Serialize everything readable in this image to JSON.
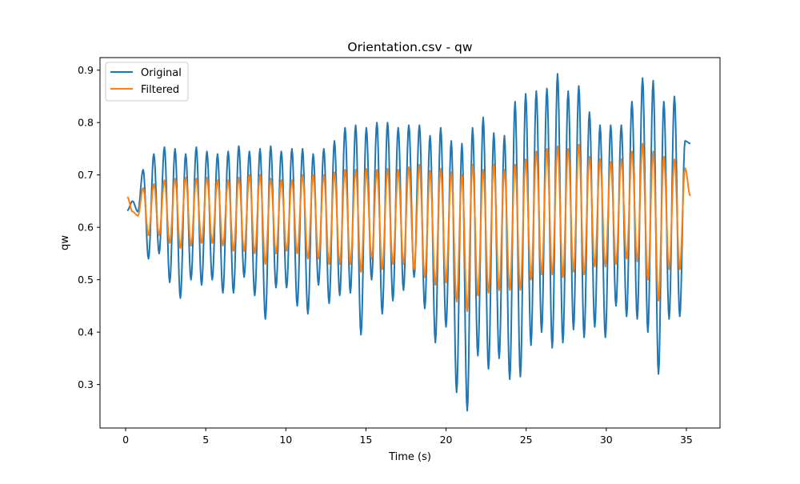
{
  "chart_data": {
    "type": "line",
    "title": "Orientation.csv - qw",
    "xlabel": "Time (s)",
    "ylabel": "qw",
    "xlim": [
      -1.6,
      37.1
    ],
    "ylim": [
      0.217,
      0.924
    ],
    "xticks": [
      0,
      5,
      10,
      15,
      20,
      25,
      30,
      35
    ],
    "yticks": [
      0.3,
      0.4,
      0.5,
      0.6,
      0.7,
      0.8,
      0.9
    ],
    "xtick_labels": [
      "0",
      "5",
      "10",
      "15",
      "20",
      "25",
      "30",
      "35"
    ],
    "ytick_labels": [
      "0.3",
      "0.4",
      "0.5",
      "0.6",
      "0.7",
      "0.8",
      "0.9"
    ],
    "grid": false,
    "legend_position": "upper-left",
    "colors": {
      "Original": "#1f77b4",
      "Filtered": "#ff7f0e"
    },
    "x_start": 0.1,
    "x_end": 35.25,
    "series": [
      {
        "name": "Original",
        "start_value": 0.632,
        "end_value": 0.76,
        "peaks": [
          0.65,
          0.71,
          0.74,
          0.753,
          0.75,
          0.74,
          0.753,
          0.745,
          0.74,
          0.745,
          0.755,
          0.745,
          0.75,
          0.755,
          0.745,
          0.75,
          0.75,
          0.74,
          0.75,
          0.765,
          0.79,
          0.795,
          0.79,
          0.8,
          0.8,
          0.79,
          0.795,
          0.795,
          0.775,
          0.79,
          0.765,
          0.76,
          0.79,
          0.81,
          0.78,
          0.775,
          0.84,
          0.855,
          0.86,
          0.865,
          0.893,
          0.86,
          0.87,
          0.82,
          0.795,
          0.795,
          0.795,
          0.84,
          0.885,
          0.88,
          0.84,
          0.85,
          0.765
        ],
        "troughs": [
          0.63,
          0.54,
          0.55,
          0.495,
          0.465,
          0.5,
          0.49,
          0.5,
          0.475,
          0.475,
          0.505,
          0.47,
          0.425,
          0.485,
          0.485,
          0.45,
          0.435,
          0.49,
          0.455,
          0.47,
          0.475,
          0.395,
          0.5,
          0.435,
          0.46,
          0.48,
          0.505,
          0.445,
          0.38,
          0.41,
          0.285,
          0.25,
          0.355,
          0.33,
          0.35,
          0.31,
          0.315,
          0.375,
          0.4,
          0.37,
          0.38,
          0.405,
          0.39,
          0.41,
          0.39,
          0.45,
          0.43,
          0.425,
          0.4,
          0.32,
          0.425,
          0.43
        ]
      },
      {
        "name": "Filtered",
        "start_value": 0.658,
        "end_value": 0.66,
        "peaks": [
          0.63,
          0.675,
          0.683,
          0.69,
          0.693,
          0.695,
          0.693,
          0.695,
          0.69,
          0.69,
          0.695,
          0.7,
          0.7,
          0.693,
          0.69,
          0.69,
          0.7,
          0.7,
          0.7,
          0.705,
          0.71,
          0.71,
          0.712,
          0.71,
          0.712,
          0.71,
          0.715,
          0.72,
          0.708,
          0.712,
          0.705,
          0.7,
          0.72,
          0.71,
          0.72,
          0.71,
          0.72,
          0.73,
          0.745,
          0.75,
          0.755,
          0.75,
          0.758,
          0.735,
          0.73,
          0.725,
          0.73,
          0.745,
          0.76,
          0.745,
          0.735,
          0.73,
          0.713
        ],
        "troughs": [
          0.622,
          0.585,
          0.585,
          0.57,
          0.56,
          0.565,
          0.57,
          0.57,
          0.565,
          0.555,
          0.555,
          0.55,
          0.53,
          0.55,
          0.555,
          0.55,
          0.54,
          0.54,
          0.53,
          0.53,
          0.53,
          0.515,
          0.54,
          0.52,
          0.53,
          0.53,
          0.52,
          0.505,
          0.49,
          0.495,
          0.458,
          0.44,
          0.47,
          0.475,
          0.48,
          0.48,
          0.48,
          0.5,
          0.51,
          0.51,
          0.505,
          0.515,
          0.51,
          0.525,
          0.525,
          0.53,
          0.54,
          0.535,
          0.5,
          0.46,
          0.52,
          0.52
        ]
      }
    ]
  }
}
